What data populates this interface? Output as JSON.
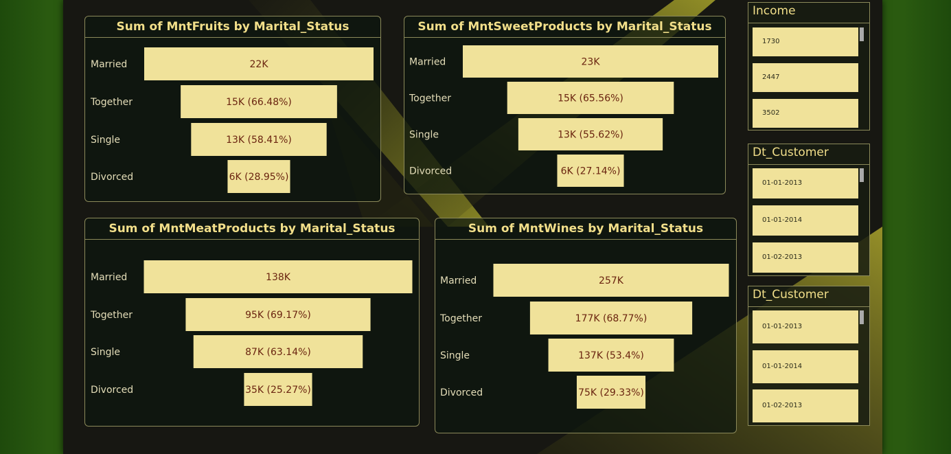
{
  "charts": {
    "fruits": {
      "title": "Sum of MntFruits by Marital_Status"
    },
    "sweet": {
      "title": "Sum of MntSweetProducts by Marital_Status"
    },
    "meat": {
      "title": "Sum of MntMeatProducts by Marital_Status"
    },
    "wines": {
      "title": "Sum of MntWines by Marital_Status"
    }
  },
  "chart_data": [
    {
      "id": "fruits",
      "type": "funnel",
      "title": "Sum of MntFruits by Marital_Status",
      "categories": [
        "Married",
        "Together",
        "Single",
        "Divorced"
      ],
      "values": [
        22000,
        15000,
        13000,
        6000
      ],
      "labels": [
        "22K",
        "15K (66.48%)",
        "13K (58.41%)",
        "6K (28.95%)"
      ]
    },
    {
      "id": "sweet",
      "type": "funnel",
      "title": "Sum of MntSweetProducts by Marital_Status",
      "categories": [
        "Married",
        "Together",
        "Single",
        "Divorced"
      ],
      "values": [
        23000,
        15000,
        13000,
        6000
      ],
      "labels": [
        "23K",
        "15K (65.56%)",
        "13K (55.62%)",
        "6K (27.14%)"
      ]
    },
    {
      "id": "meat",
      "type": "funnel",
      "title": "Sum of MntMeatProducts by Marital_Status",
      "categories": [
        "Married",
        "Together",
        "Single",
        "Divorced"
      ],
      "values": [
        138000,
        95000,
        87000,
        35000
      ],
      "labels": [
        "138K",
        "95K (69.17%)",
        "87K (63.14%)",
        "35K (25.27%)"
      ]
    },
    {
      "id": "wines",
      "type": "funnel",
      "title": "Sum of MntWines by Marital_Status",
      "categories": [
        "Married",
        "Together",
        "Single",
        "Divorced"
      ],
      "values": [
        257000,
        177000,
        137000,
        75000
      ],
      "labels": [
        "257K",
        "177K (68.77%)",
        "137K (53.4%)",
        "75K (29.33%)"
      ]
    }
  ],
  "slicers": {
    "income": {
      "title": "Income",
      "items": [
        "1730",
        "2447",
        "3502"
      ]
    },
    "dt_customer_1": {
      "title": "Dt_Customer",
      "items": [
        "01-01-2013",
        "01-01-2014",
        "01-02-2013"
      ]
    },
    "dt_customer_2": {
      "title": "Dt_Customer",
      "items": [
        "01-01-2013",
        "01-01-2014",
        "01-02-2013"
      ]
    }
  },
  "colors": {
    "bar": "#f0e29a",
    "label_text": "#6a2410",
    "category_text": "#e4ddb8",
    "title": "#f2df8a"
  }
}
